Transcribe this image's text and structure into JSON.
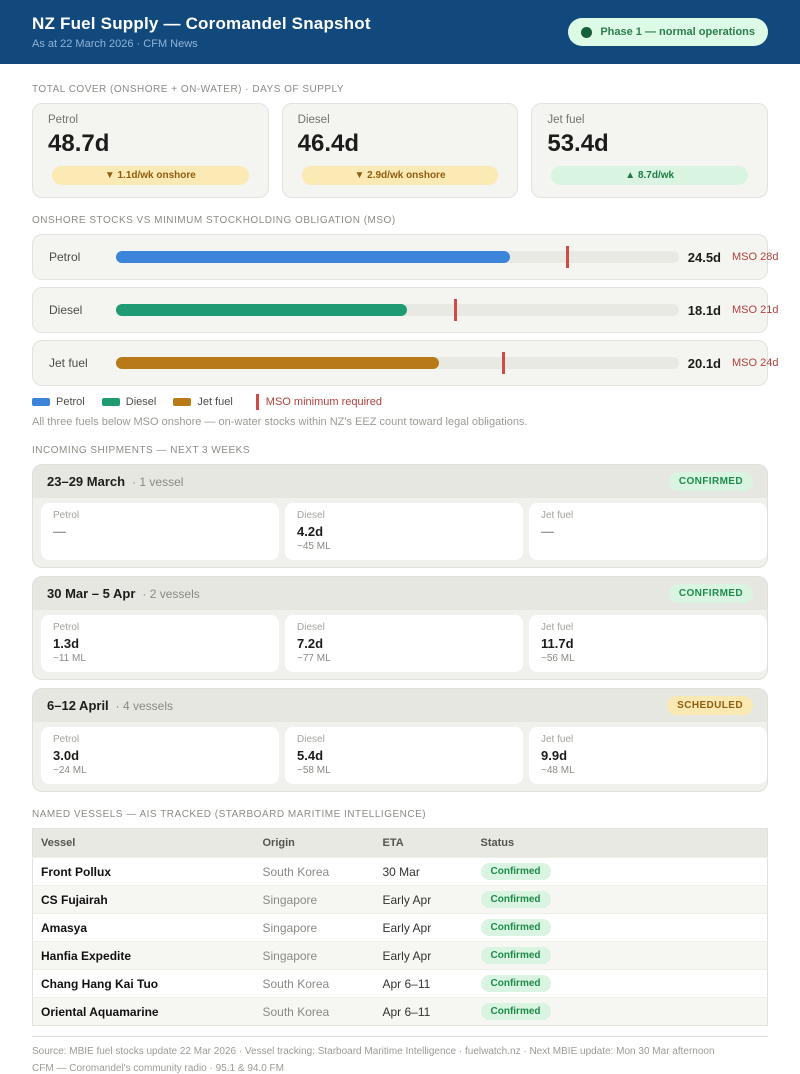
{
  "header": {
    "title": "NZ Fuel Supply — Coromandel Snapshot",
    "subtitle": "As at 22 March 2026  ·  CFM News",
    "phase_badge": "Phase 1 — normal operations"
  },
  "colors": {
    "header_blue": "#12497d",
    "petrol": "#3b84d9",
    "diesel": "#1f9b74",
    "jet_fuel": "#b87a18",
    "mso_marker": "#d14b46",
    "mso_text_red": "#b0413d",
    "status_green": "#1f8a4c",
    "status_green_bg": "#d9f5e1",
    "warning_amber": "#8f5e10",
    "warning_amber_bg": "#fbe9b3"
  },
  "total_cover": {
    "section_label": "TOTAL COVER (ONSHORE + ON-WATER)  ·  DAYS OF SUPPLY",
    "cards": [
      {
        "fuel": "Petrol",
        "value": "48.7d",
        "delta": "▼ 1.1d/wk onshore",
        "direction": "down"
      },
      {
        "fuel": "Diesel",
        "value": "46.4d",
        "delta": "▼ 2.9d/wk onshore",
        "direction": "down"
      },
      {
        "fuel": "Jet fuel",
        "value": "53.4d",
        "delta": "▲ 8.7d/wk",
        "direction": "up"
      }
    ]
  },
  "mso": {
    "section_label": "ONSHORE STOCKS VS MINIMUM STOCKHOLDING OBLIGATION (MSO)",
    "scale_max_days": 35,
    "rows": [
      {
        "fuel": "Petrol",
        "days": 24.5,
        "value_label": "24.5d",
        "mso_days": 28,
        "mso_label": "MSO 28d"
      },
      {
        "fuel": "Diesel",
        "days": 18.1,
        "value_label": "18.1d",
        "mso_days": 21,
        "mso_label": "MSO 21d"
      },
      {
        "fuel": "Jet fuel",
        "days": 20.1,
        "value_label": "20.1d",
        "mso_days": 24,
        "mso_label": "MSO 24d"
      }
    ],
    "legend_mso_label": "MSO minimum required",
    "note": "All three fuels below MSO onshore — on-water stocks within NZ's EEZ count toward legal obligations."
  },
  "shipments": {
    "section_label": "INCOMING SHIPMENTS — NEXT 3 WEEKS",
    "weeks": [
      {
        "range": "23–29 March",
        "vessel_count": "· 1 vessel",
        "status": "CONFIRMED",
        "fuels": [
          {
            "fuel": "Petrol",
            "days": "—",
            "volume": ""
          },
          {
            "fuel": "Diesel",
            "days": "4.2d",
            "volume": "~45 ML"
          },
          {
            "fuel": "Jet fuel",
            "days": "—",
            "volume": ""
          }
        ]
      },
      {
        "range": "30 Mar – 5 Apr",
        "vessel_count": "· 2 vessels",
        "status": "CONFIRMED",
        "fuels": [
          {
            "fuel": "Petrol",
            "days": "1.3d",
            "volume": "~11 ML"
          },
          {
            "fuel": "Diesel",
            "days": "7.2d",
            "volume": "~77 ML"
          },
          {
            "fuel": "Jet fuel",
            "days": "11.7d",
            "volume": "~56 ML"
          }
        ]
      },
      {
        "range": "6–12 April",
        "vessel_count": "· 4 vessels",
        "status": "SCHEDULED",
        "fuels": [
          {
            "fuel": "Petrol",
            "days": "3.0d",
            "volume": "~24 ML"
          },
          {
            "fuel": "Diesel",
            "days": "5.4d",
            "volume": "~58 ML"
          },
          {
            "fuel": "Jet fuel",
            "days": "9.9d",
            "volume": "~48 ML"
          }
        ]
      }
    ]
  },
  "vessels_table": {
    "section_label": "NAMED VESSELS — AIS TRACKED (STARBOARD MARITIME INTELLIGENCE)",
    "columns": {
      "vessel": "Vessel",
      "origin": "Origin",
      "eta": "ETA",
      "status": "Status"
    },
    "rows": [
      {
        "vessel": "Front Pollux",
        "origin": "South Korea",
        "eta": "30 Mar",
        "status": "Confirmed"
      },
      {
        "vessel": "CS Fujairah",
        "origin": "Singapore",
        "eta": "Early Apr",
        "status": "Confirmed"
      },
      {
        "vessel": "Amasya",
        "origin": "Singapore",
        "eta": "Early Apr",
        "status": "Confirmed"
      },
      {
        "vessel": "Hanfia Expedite",
        "origin": "Singapore",
        "eta": "Early Apr",
        "status": "Confirmed"
      },
      {
        "vessel": "Chang Hang Kai Tuo",
        "origin": "South Korea",
        "eta": "Apr 6–11",
        "status": "Confirmed"
      },
      {
        "vessel": "Oriental Aquamarine",
        "origin": "South Korea",
        "eta": "Apr 6–11",
        "status": "Confirmed"
      }
    ]
  },
  "footer": {
    "line1": "Source: MBIE fuel stocks update 22 Mar 2026  ·  Vessel tracking: Starboard Maritime Intelligence  ·  fuelwatch.nz  ·  Next MBIE update: Mon 30 Mar afternoon",
    "line2": "CFM — Coromandel's community radio  ·  95.1 & 94.0 FM"
  }
}
